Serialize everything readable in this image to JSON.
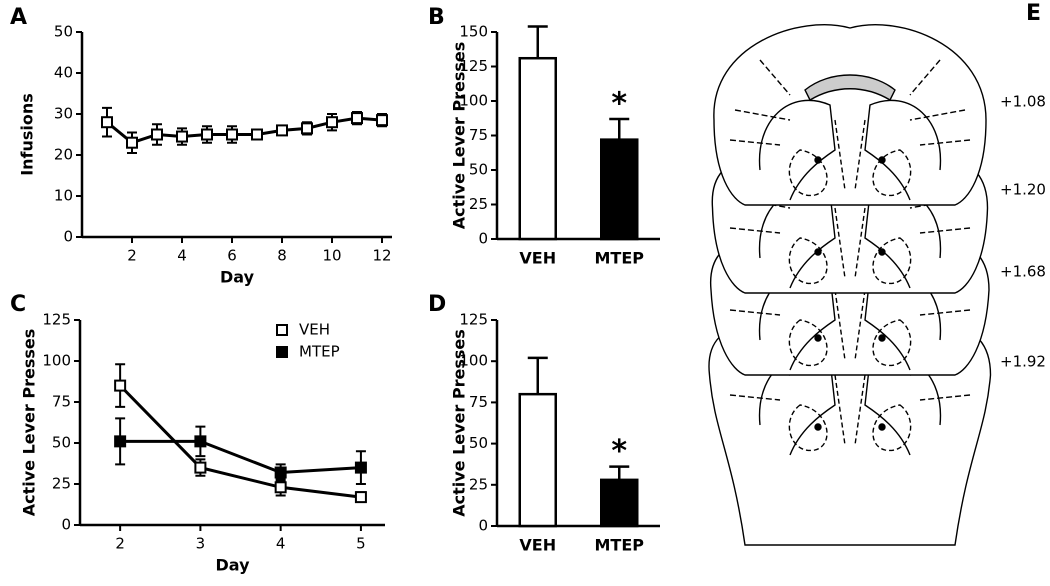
{
  "chart_data": [
    {
      "type": "line",
      "panel_label": "A",
      "ylabel": "Infusions",
      "xlabel": "Day",
      "x": [
        1,
        2,
        3,
        4,
        5,
        6,
        7,
        8,
        9,
        10,
        11,
        12
      ],
      "values": [
        28,
        23,
        25,
        24.5,
        25,
        25,
        25,
        26,
        26.5,
        28,
        29,
        28.5
      ],
      "errors": [
        3.5,
        2.5,
        2.5,
        2,
        2,
        2,
        1,
        1,
        1.5,
        2,
        1.5,
        1.5
      ],
      "marker": "open",
      "color": "#000000",
      "xlim": [
        0,
        12.4
      ],
      "xticks": [
        2,
        4,
        6,
        8,
        10,
        12
      ],
      "ylim": [
        0,
        50
      ],
      "yticks": [
        0,
        10,
        20,
        30,
        40,
        50
      ]
    },
    {
      "type": "bar",
      "panel_label": "B",
      "ylabel": "Active Lever Presses",
      "categories": [
        "VEH",
        "MTEP"
      ],
      "values": [
        131,
        72
      ],
      "errors": [
        23,
        15
      ],
      "colors": [
        "#ffffff",
        "#000000"
      ],
      "annotations": [
        {
          "text": "*",
          "category": "MTEP"
        }
      ],
      "ylim": [
        0,
        150
      ],
      "yticks": [
        0,
        25,
        50,
        75,
        100,
        125,
        150
      ]
    },
    {
      "type": "line",
      "panel_label": "C",
      "ylabel": "Active Lever  Presses",
      "xlabel": "Day",
      "x": [
        2,
        3,
        4,
        5
      ],
      "series": [
        {
          "name": "VEH",
          "marker": "open",
          "color": "#000000",
          "values": [
            85,
            35,
            23,
            17
          ],
          "errors": [
            13,
            5,
            5,
            3
          ]
        },
        {
          "name": "MTEP",
          "marker": "filled",
          "color": "#000000",
          "values": [
            51,
            51,
            32,
            35
          ],
          "errors": [
            14,
            9,
            5,
            10
          ]
        }
      ],
      "legend": "upper right",
      "xlim": [
        1.5,
        5.3
      ],
      "xticks": [
        2,
        3,
        4,
        5
      ],
      "ylim": [
        0,
        125
      ],
      "yticks": [
        0,
        25,
        50,
        75,
        100,
        125
      ]
    },
    {
      "type": "bar",
      "panel_label": "D",
      "ylabel": "Active Lever  Presses",
      "categories": [
        "VEH",
        "MTEP"
      ],
      "values": [
        80,
        28
      ],
      "errors": [
        22,
        8
      ],
      "colors": [
        "#ffffff",
        "#000000"
      ],
      "annotations": [
        {
          "text": "*",
          "category": "MTEP"
        }
      ],
      "ylim": [
        0,
        125
      ],
      "yticks": [
        0,
        25,
        50,
        75,
        100,
        125
      ]
    }
  ],
  "panel_e": {
    "label": "E",
    "levels": [
      "+1.08",
      "+1.20",
      "+1.68",
      "+1.92"
    ]
  }
}
